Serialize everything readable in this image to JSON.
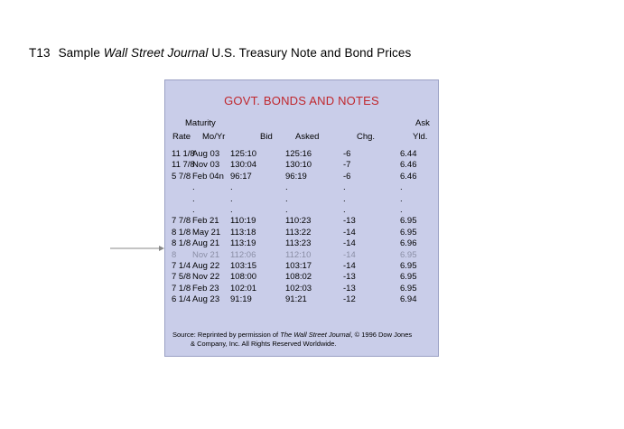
{
  "slide": {
    "code": "T13",
    "title_pre": "Sample ",
    "title_italic": "Wall Street Journal",
    "title_post": " U.S. Treasury Note and Bond Prices"
  },
  "panel": {
    "title": "GOVT. BONDS AND NOTES",
    "bg_color": "#c9cde9",
    "title_color": "#c0272d"
  },
  "headers": {
    "maturity": "Maturity",
    "rate": "Rate",
    "mo_yr": "Mo/Yr",
    "bid": "Bid",
    "asked": "Asked",
    "chg": "Chg.",
    "ask": "Ask",
    "yld": "Yld."
  },
  "rows": [
    {
      "rate": "11 1/8",
      "mo_yr": "Aug 03",
      "bid": "125:10",
      "asked": "125:16",
      "chg": "-6",
      "yld": "6.44"
    },
    {
      "rate": "11 7/8",
      "mo_yr": "Nov 03",
      "bid": "130:04",
      "asked": "130:10",
      "chg": "-7",
      "yld": "6.46"
    },
    {
      "rate": "5 7/8",
      "mo_yr": "Feb 04n",
      "bid": "96:17",
      "asked": "96:19",
      "chg": "-6",
      "yld": "6.46"
    },
    {
      "rate": "",
      "mo_yr": ".",
      "bid": ".",
      "asked": ".",
      "chg": ".",
      "yld": "."
    },
    {
      "rate": "",
      "mo_yr": ".",
      "bid": ".",
      "asked": ".",
      "chg": ".",
      "yld": "."
    },
    {
      "rate": "",
      "mo_yr": ".",
      "bid": ".",
      "asked": ".",
      "chg": ".",
      "yld": "."
    },
    {
      "rate": "7 7/8",
      "mo_yr": "Feb 21",
      "bid": "110:19",
      "asked": "110:23",
      "chg": "-13",
      "yld": "6.95"
    },
    {
      "rate": "8 1/8",
      "mo_yr": "May 21",
      "bid": "113:18",
      "asked": "113:22",
      "chg": "-14",
      "yld": "6.95"
    },
    {
      "rate": "8 1/8",
      "mo_yr": "Aug 21",
      "bid": "113:19",
      "asked": "113:23",
      "chg": "-14",
      "yld": "6.96"
    },
    {
      "rate": "8",
      "mo_yr": "Nov 21",
      "bid": "112:06",
      "asked": "112:10",
      "chg": "-14",
      "yld": "6.95",
      "dim": true
    },
    {
      "rate": "7 1/4",
      "mo_yr": "Aug 22",
      "bid": "103:15",
      "asked": "103:17",
      "chg": "-14",
      "yld": "6.95"
    },
    {
      "rate": "7 5/8",
      "mo_yr": "Nov 22",
      "bid": "108:00",
      "asked": "108:02",
      "chg": "-13",
      "yld": "6.95"
    },
    {
      "rate": "7 1/8",
      "mo_yr": "Feb 23",
      "bid": "102:01",
      "asked": "102:03",
      "chg": "-13",
      "yld": "6.95"
    },
    {
      "rate": "6 1/4",
      "mo_yr": "Aug 23",
      "bid": "91:19",
      "asked": "91:21",
      "chg": "-12",
      "yld": "6.94"
    }
  ],
  "source": {
    "pre": "Source: Reprinted by permission of ",
    "italic": "The Wall Street Journal",
    "post": ", © 1996 Dow Jones",
    "line2": "& Company, Inc. All Rights Reserved Worldwide."
  }
}
